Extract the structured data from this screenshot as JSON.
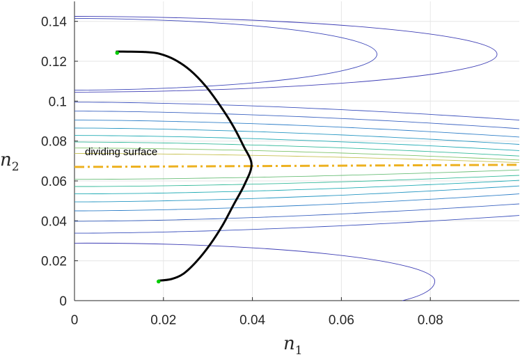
{
  "chart_data": {
    "type": "line",
    "title": "",
    "xlabel": "n",
    "xlabel_sub": "1",
    "ylabel": "n",
    "ylabel_sub": "2",
    "xlim": [
      0,
      0.1
    ],
    "ylim": [
      0,
      0.15
    ],
    "x_ticks": [
      0,
      0.02,
      0.04,
      0.06,
      0.08
    ],
    "x_tick_labels": [
      "0",
      "0.02",
      "0.04",
      "0.06",
      "0.08"
    ],
    "y_ticks": [
      0,
      0.02,
      0.04,
      0.06,
      0.08,
      0.1,
      0.12,
      0.14
    ],
    "y_tick_labels": [
      "0",
      "0.02",
      "0.04",
      "0.06",
      "0.08",
      "0.1",
      "0.12",
      "0.14"
    ],
    "grid": true,
    "annotation": {
      "text": "dividing surface",
      "x": 0.0025,
      "y": 0.073
    },
    "dividing_surface": {
      "style": "dash-dot",
      "color": "#EDB120",
      "x": [
        0,
        0.1
      ],
      "y": [
        0.067,
        0.0681
      ]
    },
    "trajectory": {
      "color": "#000000",
      "points": [
        [
          0.0093,
          0.1248
        ],
        [
          0.012,
          0.1248
        ],
        [
          0.016,
          0.1246
        ],
        [
          0.019,
          0.1238
        ],
        [
          0.0225,
          0.1208
        ],
        [
          0.026,
          0.1155
        ],
        [
          0.0295,
          0.1075
        ],
        [
          0.0325,
          0.0985
        ],
        [
          0.0355,
          0.0882
        ],
        [
          0.038,
          0.0775
        ],
        [
          0.0398,
          0.0683
        ],
        [
          0.0383,
          0.0585
        ],
        [
          0.0358,
          0.0482
        ],
        [
          0.0333,
          0.0378
        ],
        [
          0.0305,
          0.0282
        ],
        [
          0.0275,
          0.0198
        ],
        [
          0.0245,
          0.0135
        ],
        [
          0.0218,
          0.0108
        ],
        [
          0.0188,
          0.01
        ]
      ],
      "endpoints": [
        [
          0.0096,
          0.1242
        ],
        [
          0.0189,
          0.0096
        ]
      ],
      "endpoint_color": "#00CC00"
    },
    "contours": [
      {
        "type": "closed-upper",
        "y0": 0.1425,
        "vertex_x": 0.095,
        "vertex_y": 0.1235,
        "color": "#3C3CB4"
      },
      {
        "type": "closed-upper",
        "y0": 0.1055,
        "vertex_x": 0.068,
        "vertex_y": 0.1235,
        "color": "#3A44B8"
      },
      {
        "type": "upper-open",
        "y0": 0.0995,
        "y1": 0.0905,
        "color": "#3A4FBC"
      },
      {
        "type": "upper-open",
        "y0": 0.095,
        "y1": 0.0862,
        "color": "#3A62C0"
      },
      {
        "type": "upper-open",
        "y0": 0.0905,
        "y1": 0.082,
        "color": "#2F7FC8"
      },
      {
        "type": "upper-open",
        "y0": 0.0865,
        "y1": 0.0783,
        "color": "#2596C2"
      },
      {
        "type": "upper-open",
        "y0": 0.0828,
        "y1": 0.0752,
        "color": "#20ABB4"
      },
      {
        "type": "upper-open",
        "y0": 0.0795,
        "y1": 0.0725,
        "color": "#35BA9A"
      },
      {
        "type": "upper-open",
        "y0": 0.0765,
        "y1": 0.0705,
        "color": "#7FC36A"
      },
      {
        "type": "upper-open",
        "y0": 0.0738,
        "y1": 0.0692,
        "color": "#C7C152"
      },
      {
        "type": "lower-open",
        "y0": 0.0608,
        "y1": 0.0655,
        "color": "#6ABE78"
      },
      {
        "type": "lower-open",
        "y0": 0.0572,
        "y1": 0.0628,
        "color": "#35BA9A"
      },
      {
        "type": "lower-open",
        "y0": 0.0535,
        "y1": 0.0603,
        "color": "#20ABB4"
      },
      {
        "type": "lower-open",
        "y0": 0.0495,
        "y1": 0.0575,
        "color": "#2596C2"
      },
      {
        "type": "lower-open",
        "y0": 0.045,
        "y1": 0.0535,
        "color": "#2F7FC8"
      },
      {
        "type": "lower-open",
        "y0": 0.0398,
        "y1": 0.0485,
        "color": "#3A62C0"
      },
      {
        "type": "lower-open",
        "y0": 0.0338,
        "y1": 0.0427,
        "color": "#3A4FBC"
      },
      {
        "type": "closed-lower",
        "y0": 0.0288,
        "vertex_x": 0.081,
        "vertex_y": 0.0098,
        "end_x": 0.0737,
        "color": "#3C3CB4"
      }
    ]
  }
}
